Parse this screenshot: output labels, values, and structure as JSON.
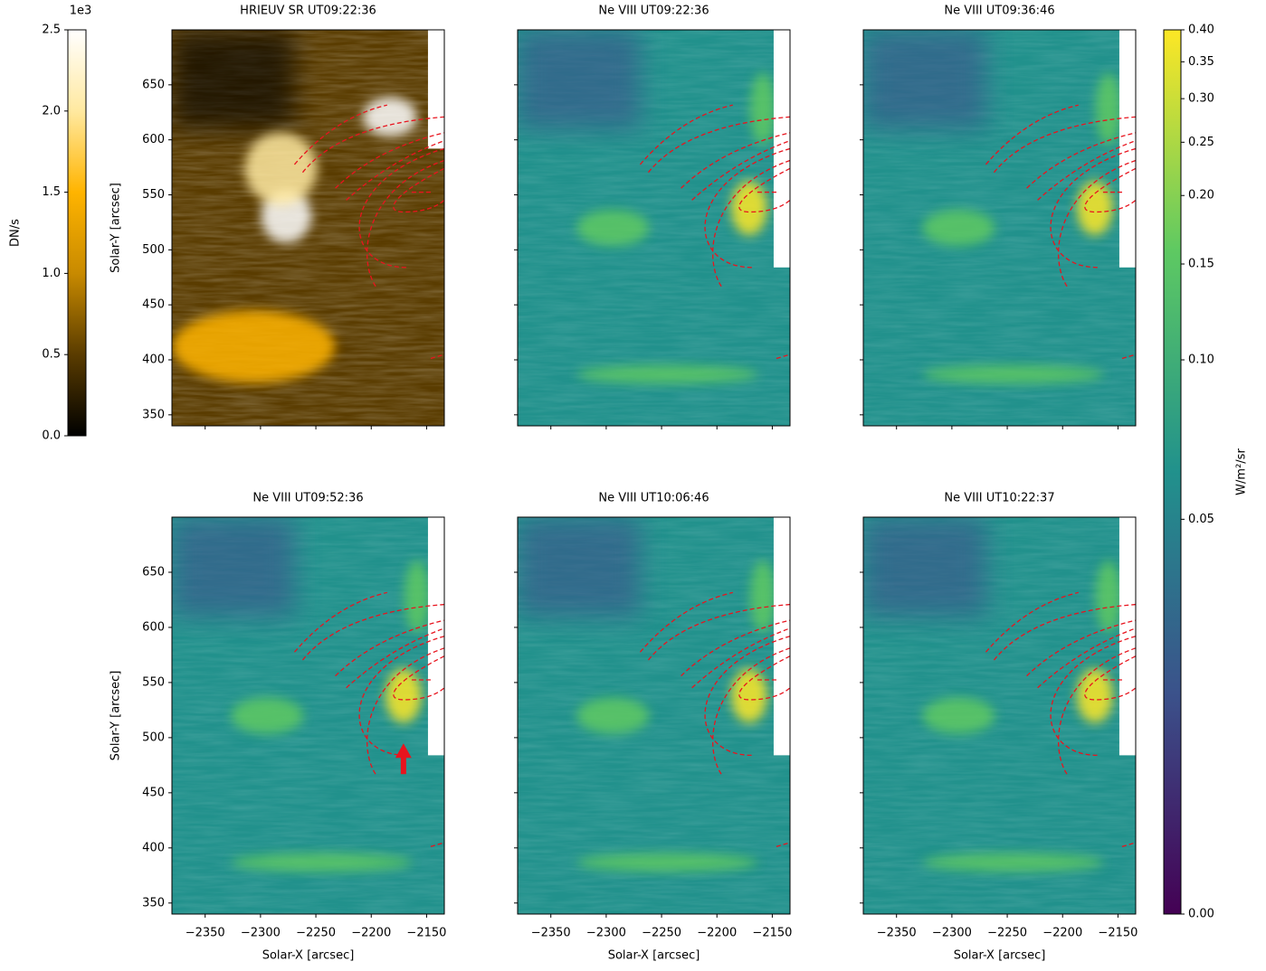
{
  "chart_data": [
    {
      "type": "image",
      "title": "HRIEUV SR UT09:22:36",
      "cmap": [
        "#000000",
        "#5a3c00",
        "#c88a00",
        "#ffb400",
        "#ffe9a0",
        "#ffffff"
      ],
      "xlim": [
        -2380,
        -2134
      ],
      "ylim": [
        340,
        700
      ],
      "xticks": [
        -2350,
        -2300,
        -2250,
        -2200,
        -2150
      ],
      "xticklabels": false,
      "yticks": [
        350,
        400,
        450,
        500,
        550,
        600,
        650
      ],
      "yticklabels": true,
      "ylabel": "Solar-Y [arcsec]"
    },
    {
      "type": "image",
      "title": "Ne VIII UT09:22:36",
      "cmap": [
        "#440154",
        "#3b528b",
        "#21918c",
        "#5ec962",
        "#fde725"
      ],
      "xlim": [
        -2380,
        -2134
      ],
      "ylim": [
        340,
        700
      ],
      "xticks": [
        -2350,
        -2300,
        -2250,
        -2200,
        -2150
      ],
      "xticklabels": false,
      "yticks": [
        350,
        400,
        450,
        500,
        550,
        600,
        650
      ],
      "yticklabels": false
    },
    {
      "type": "image",
      "title": "Ne VIII UT09:36:46",
      "cmap": [
        "#440154",
        "#3b528b",
        "#21918c",
        "#5ec962",
        "#fde725"
      ],
      "xlim": [
        -2380,
        -2134
      ],
      "ylim": [
        340,
        700
      ],
      "xticks": [
        -2350,
        -2300,
        -2250,
        -2200,
        -2150
      ],
      "xticklabels": false,
      "yticks": [
        350,
        400,
        450,
        500,
        550,
        600,
        650
      ],
      "yticklabels": false
    },
    {
      "type": "image",
      "title": "Ne VIII UT09:52:36",
      "cmap": [
        "#440154",
        "#3b528b",
        "#21918c",
        "#5ec962",
        "#fde725"
      ],
      "xlim": [
        -2380,
        -2134
      ],
      "ylim": [
        340,
        700
      ],
      "xticks": [
        {
          "value": -2350,
          "label": "−2350"
        },
        {
          "value": -2300,
          "label": "−2300"
        },
        {
          "value": -2250,
          "label": "−2250"
        },
        {
          "value": -2200,
          "label": "−2200"
        },
        {
          "value": -2150,
          "label": "−2150"
        }
      ],
      "xticklabels": true,
      "xlabel": "Solar-X [arcsec]",
      "yticks": [
        350,
        400,
        450,
        500,
        550,
        600,
        650
      ],
      "yticklabels": true,
      "ylabel": "Solar-Y [arcsec]",
      "arrow": true
    },
    {
      "type": "image",
      "title": "Ne VIII UT10:06:46",
      "cmap": [
        "#440154",
        "#3b528b",
        "#21918c",
        "#5ec962",
        "#fde725"
      ],
      "xlim": [
        -2380,
        -2134
      ],
      "ylim": [
        340,
        700
      ],
      "xticks": [
        {
          "value": -2350,
          "label": "−2350"
        },
        {
          "value": -2300,
          "label": "−2300"
        },
        {
          "value": -2250,
          "label": "−2250"
        },
        {
          "value": -2200,
          "label": "−2200"
        },
        {
          "value": -2150,
          "label": "−2150"
        }
      ],
      "xticklabels": true,
      "xlabel": "Solar-X [arcsec]",
      "yticks": [
        350,
        400,
        450,
        500,
        550,
        600,
        650
      ],
      "yticklabels": false
    },
    {
      "type": "image",
      "title": "Ne VIII UT10:22:37",
      "cmap": [
        "#440154",
        "#3b528b",
        "#21918c",
        "#5ec962",
        "#fde725"
      ],
      "xlim": [
        -2380,
        -2134
      ],
      "ylim": [
        340,
        700
      ],
      "xticks": [
        {
          "value": -2350,
          "label": "−2350"
        },
        {
          "value": -2300,
          "label": "−2300"
        },
        {
          "value": -2250,
          "label": "−2250"
        },
        {
          "value": -2200,
          "label": "−2200"
        },
        {
          "value": -2150,
          "label": "−2150"
        }
      ],
      "xticklabels": true,
      "xlabel": "Solar-X [arcsec]",
      "yticks": [
        350,
        400,
        450,
        500,
        550,
        600,
        650
      ],
      "yticklabels": false
    },
    {
      "type": "colorbar",
      "label": "DN/s",
      "offset_label": "1e3",
      "side": "left",
      "scale": "linear",
      "cmap": [
        "#000000",
        "#5a3c00",
        "#c88a00",
        "#ffb400",
        "#ffe9a0",
        "#ffffff"
      ],
      "ylim": [
        0,
        2.5
      ],
      "yticks": [
        {
          "value": 0,
          "label": "0.0"
        },
        0.5,
        {
          "value": 1,
          "label": "1.0"
        },
        1.5,
        {
          "value": 2,
          "label": "2.0"
        },
        2.5
      ]
    },
    {
      "type": "colorbar",
      "label": "W/m²/sr",
      "side": "right",
      "scale": "asinh",
      "linear_width": 0.02,
      "cmap": [
        "#440154",
        "#3b528b",
        "#21918c",
        "#5ec962",
        "#fde725"
      ],
      "ylim": [
        0,
        0.4
      ],
      "yticks": [
        {
          "value": 0,
          "label": "0.00"
        },
        0.05,
        {
          "value": 0.1,
          "label": "0.10"
        },
        0.15,
        {
          "value": 0.2,
          "label": "0.20"
        },
        0.25,
        {
          "value": 0.3,
          "label": "0.30"
        },
        0.35,
        {
          "value": 0.4,
          "label": "0.40"
        }
      ]
    }
  ]
}
